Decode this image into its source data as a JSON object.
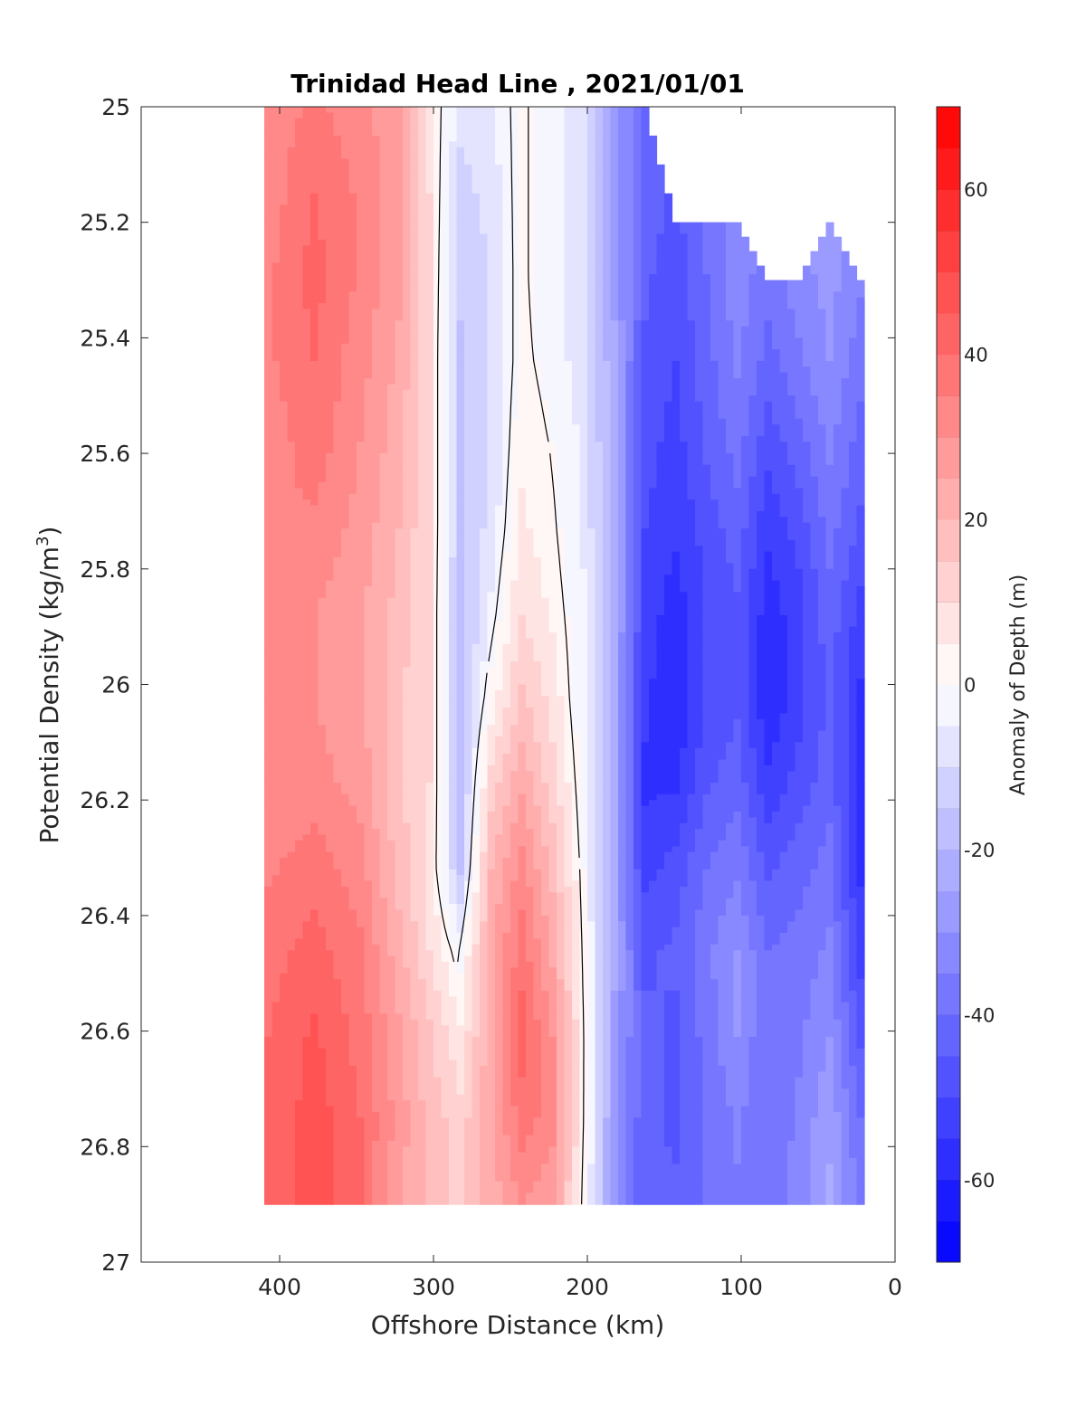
{
  "chart_data": {
    "type": "heatmap",
    "title": "Trinidad Head Line , 2021/01/01",
    "xlabel": "Offshore Distance (km)",
    "ylabel_main": "Potential Density (kg/m",
    "ylabel_sup": "3",
    "ylabel_close": ")",
    "xlim": [
      0,
      490
    ],
    "x_reversed": true,
    "ylim": [
      25,
      27
    ],
    "y_reversed": true,
    "x_ticks": [
      400,
      300,
      200,
      100,
      0
    ],
    "x_tick_labels": [
      "400",
      "300",
      "200",
      "100",
      "0"
    ],
    "y_ticks": [
      25,
      25.2,
      25.4,
      25.6,
      25.8,
      26,
      26.2,
      26.4,
      26.6,
      26.8,
      27
    ],
    "y_tick_labels": [
      "25",
      "25.2",
      "25.4",
      "25.6",
      "25.8",
      "26",
      "26.2",
      "26.4",
      "26.6",
      "26.8",
      "27"
    ],
    "colorbar": {
      "label": "Anomaly of Depth (m)",
      "range": [
        -70,
        70
      ],
      "ticks": [
        60,
        40,
        20,
        0,
        -20,
        -40,
        -60
      ],
      "tick_labels": [
        "60",
        "40",
        "20",
        "0",
        "-20",
        "-40",
        "-60"
      ],
      "levels": 28,
      "colormap": "blue-white-red",
      "min_color": "#0000ff",
      "max_color": "#ff0000"
    },
    "grid": false,
    "zero_contour": true,
    "columns": [
      {
        "x": 410,
        "y_top": 25.0,
        "y_bottom": 26.9,
        "values": [
          32,
          32,
          34,
          34,
          32,
          34,
          34,
          32,
          30,
          34,
          38,
          40,
          40,
          40
        ]
      },
      {
        "x": 380,
        "y_top": 25.0,
        "y_bottom": 26.9,
        "values": [
          36,
          40,
          42,
          40,
          38,
          34,
          30,
          30,
          32,
          38,
          42,
          46,
          48,
          48
        ]
      },
      {
        "x": 350,
        "y_top": 25.0,
        "y_bottom": 26.9,
        "values": [
          32,
          34,
          34,
          32,
          30,
          28,
          26,
          26,
          28,
          32,
          36,
          38,
          40,
          40
        ]
      },
      {
        "x": 325,
        "y_top": 25.0,
        "y_bottom": 26.9,
        "values": [
          26,
          26,
          26,
          24,
          22,
          20,
          18,
          16,
          16,
          18,
          22,
          26,
          28,
          26
        ]
      },
      {
        "x": 305,
        "y_top": 25.0,
        "y_bottom": 26.9,
        "values": [
          8,
          10,
          10,
          10,
          10,
          10,
          10,
          10,
          10,
          8,
          10,
          16,
          18,
          18
        ]
      },
      {
        "x": 285,
        "y_top": 25.0,
        "y_bottom": 26.9,
        "values": [
          -8,
          -12,
          -14,
          -16,
          -16,
          -16,
          -18,
          -18,
          -18,
          -16,
          -2,
          6,
          12,
          14
        ]
      },
      {
        "x": 265,
        "y_top": 25.0,
        "y_bottom": 26.9,
        "values": [
          -6,
          -8,
          -10,
          -10,
          -10,
          -8,
          -4,
          2,
          12,
          20,
          24,
          24,
          24,
          22
        ]
      },
      {
        "x": 245,
        "y_top": 25.0,
        "y_bottom": 26.9,
        "values": [
          2,
          2,
          2,
          2,
          4,
          6,
          10,
          16,
          24,
          32,
          38,
          42,
          38,
          30
        ]
      },
      {
        "x": 225,
        "y_top": 25.0,
        "y_bottom": 26.9,
        "values": [
          -4,
          -4,
          -4,
          -2,
          0,
          2,
          4,
          8,
          12,
          18,
          24,
          30,
          32,
          26
        ]
      },
      {
        "x": 205,
        "y_top": 25.0,
        "y_bottom": 26.9,
        "values": [
          -8,
          -8,
          -8,
          -8,
          -6,
          -6,
          -4,
          -4,
          -2,
          0,
          2,
          4,
          4,
          2
        ]
      },
      {
        "x": 185,
        "y_top": 25.0,
        "y_bottom": 26.9,
        "values": [
          -28,
          -26,
          -26,
          -24,
          -24,
          -22,
          -22,
          -24,
          -24,
          -24,
          -24,
          -26,
          -28,
          -30
        ]
      },
      {
        "x": 165,
        "y_top": 25.0,
        "y_bottom": 26.9,
        "values": [
          -40,
          -42,
          -44,
          -46,
          -48,
          -50,
          -52,
          -54,
          -56,
          -52,
          -46,
          -44,
          -44,
          -44
        ]
      },
      {
        "x": 145,
        "y_top": 25.2,
        "y_bottom": 26.9,
        "values": [
          -44,
          -46,
          -48,
          -50,
          -52,
          -54,
          -58,
          -60,
          -56,
          -48,
          -44,
          -46,
          -46,
          -44
        ]
      },
      {
        "x": 125,
        "y_top": 25.2,
        "y_bottom": 26.9,
        "values": [
          -38,
          -38,
          -40,
          -42,
          -44,
          -48,
          -50,
          -50,
          -46,
          -40,
          -36,
          -38,
          -40,
          -40
        ]
      },
      {
        "x": 105,
        "y_top": 25.2,
        "y_bottom": 26.9,
        "values": [
          -32,
          -32,
          -32,
          -34,
          -38,
          -42,
          -46,
          -46,
          -42,
          -36,
          -30,
          -30,
          -34,
          -36
        ]
      },
      {
        "x": 85,
        "y_top": 25.3,
        "y_bottom": 26.9,
        "values": [
          -36,
          -36,
          -38,
          -42,
          -48,
          -54,
          -58,
          -60,
          -54,
          -46,
          -40,
          -40,
          -40,
          -38
        ]
      },
      {
        "x": 65,
        "y_top": 25.3,
        "y_bottom": 26.9,
        "values": [
          -30,
          -30,
          -32,
          -36,
          -42,
          -48,
          -52,
          -52,
          -48,
          -42,
          -38,
          -36,
          -34,
          -32
        ]
      },
      {
        "x": 45,
        "y_top": 25.2,
        "y_bottom": 26.9,
        "values": [
          -26,
          -26,
          -28,
          -30,
          -34,
          -38,
          -42,
          -44,
          -42,
          -38,
          -34,
          -30,
          -26,
          -24
        ]
      },
      {
        "x": 25,
        "y_top": 25.3,
        "y_bottom": 26.9,
        "values": [
          -30,
          -32,
          -34,
          -38,
          -42,
          -46,
          -52,
          -56,
          -58,
          -56,
          -52,
          -46,
          -40,
          -36
        ]
      }
    ]
  }
}
